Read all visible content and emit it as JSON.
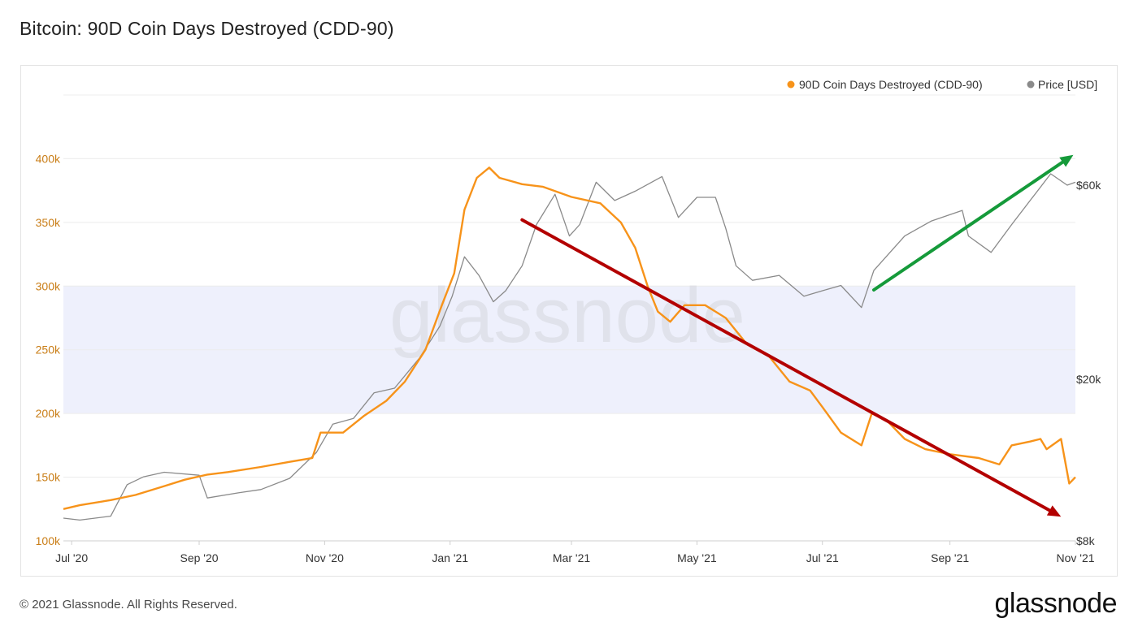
{
  "page": {
    "title": "Bitcoin: 90D Coin Days Destroyed (CDD-90)",
    "footer": "© 2021 Glassnode. All Rights Reserved.",
    "brand": "glassnode",
    "watermark": "glassnode"
  },
  "colors": {
    "cdd": "#f7931a",
    "price": "#8a8a8a",
    "band": "#eef0fc",
    "grid": "#ececec",
    "left_axis_text": "#c97d16",
    "right_axis_text": "#333333",
    "down_arrow": "#b30000",
    "up_arrow": "#159a3a"
  },
  "chart_data": {
    "type": "line",
    "title": "Bitcoin: 90D Coin Days Destroyed (CDD-90)",
    "legend_position": "top-right",
    "grid": true,
    "x_range": [
      "2020-06-27",
      "2021-11-01"
    ],
    "x_ticks": [
      {
        "date": "2020-07-01",
        "label": "Jul '20"
      },
      {
        "date": "2020-09-01",
        "label": "Sep '20"
      },
      {
        "date": "2020-11-01",
        "label": "Nov '20"
      },
      {
        "date": "2021-01-01",
        "label": "Jan '21"
      },
      {
        "date": "2021-03-01",
        "label": "Mar '21"
      },
      {
        "date": "2021-05-01",
        "label": "May '21"
      },
      {
        "date": "2021-07-01",
        "label": "Jul '21"
      },
      {
        "date": "2021-09-01",
        "label": "Sep '21"
      },
      {
        "date": "2021-11-01",
        "label": "Nov '21"
      }
    ],
    "left_axis": {
      "ylim": [
        100000,
        450000
      ],
      "ticks": [
        {
          "value": 100000,
          "label": "100k"
        },
        {
          "value": 150000,
          "label": "150k"
        },
        {
          "value": 200000,
          "label": "200k"
        },
        {
          "value": 250000,
          "label": "250k"
        },
        {
          "value": 300000,
          "label": "300k"
        },
        {
          "value": 350000,
          "label": "350k"
        },
        {
          "value": 400000,
          "label": "400k"
        }
      ]
    },
    "right_axis": {
      "scale": "log",
      "ylim": [
        8000,
        100000
      ],
      "ticks": [
        {
          "value": 8000,
          "label": "$8k"
        },
        {
          "value": 20000,
          "label": "$20k"
        },
        {
          "value": 60000,
          "label": "$60k"
        }
      ]
    },
    "band": {
      "axis": "left",
      "from": 200000,
      "to": 300000
    },
    "series": [
      {
        "name": "90D Coin Days Destroyed (CDD-90)",
        "axis": "left",
        "points": [
          [
            "2020-06-27",
            125000
          ],
          [
            "2020-07-05",
            128000
          ],
          [
            "2020-07-20",
            132000
          ],
          [
            "2020-08-01",
            136000
          ],
          [
            "2020-08-15",
            143000
          ],
          [
            "2020-08-25",
            148000
          ],
          [
            "2020-09-05",
            152000
          ],
          [
            "2020-09-15",
            154000
          ],
          [
            "2020-10-01",
            158000
          ],
          [
            "2020-10-15",
            162000
          ],
          [
            "2020-10-26",
            165000
          ],
          [
            "2020-10-30",
            185000
          ],
          [
            "2020-11-10",
            185000
          ],
          [
            "2020-11-20",
            198000
          ],
          [
            "2020-12-01",
            210000
          ],
          [
            "2020-12-10",
            225000
          ],
          [
            "2020-12-20",
            250000
          ],
          [
            "2020-12-28",
            285000
          ],
          [
            "2021-01-03",
            310000
          ],
          [
            "2021-01-08",
            360000
          ],
          [
            "2021-01-14",
            385000
          ],
          [
            "2021-01-20",
            393000
          ],
          [
            "2021-01-25",
            385000
          ],
          [
            "2021-02-05",
            380000
          ],
          [
            "2021-02-15",
            378000
          ],
          [
            "2021-03-01",
            370000
          ],
          [
            "2021-03-15",
            365000
          ],
          [
            "2021-03-25",
            350000
          ],
          [
            "2021-04-01",
            330000
          ],
          [
            "2021-04-07",
            300000
          ],
          [
            "2021-04-12",
            280000
          ],
          [
            "2021-04-18",
            272000
          ],
          [
            "2021-04-25",
            285000
          ],
          [
            "2021-05-05",
            285000
          ],
          [
            "2021-05-15",
            275000
          ],
          [
            "2021-05-25",
            255000
          ],
          [
            "2021-06-05",
            245000
          ],
          [
            "2021-06-15",
            225000
          ],
          [
            "2021-06-25",
            218000
          ],
          [
            "2021-07-01",
            205000
          ],
          [
            "2021-07-10",
            185000
          ],
          [
            "2021-07-20",
            175000
          ],
          [
            "2021-07-25",
            200000
          ],
          [
            "2021-08-01",
            195000
          ],
          [
            "2021-08-10",
            180000
          ],
          [
            "2021-08-20",
            172000
          ],
          [
            "2021-09-01",
            168000
          ],
          [
            "2021-09-15",
            165000
          ],
          [
            "2021-09-25",
            160000
          ],
          [
            "2021-10-01",
            175000
          ],
          [
            "2021-10-10",
            178000
          ],
          [
            "2021-10-15",
            180000
          ],
          [
            "2021-10-18",
            172000
          ],
          [
            "2021-10-25",
            180000
          ],
          [
            "2021-10-29",
            145000
          ],
          [
            "2021-11-01",
            150000
          ]
        ]
      },
      {
        "name": "Price [USD]",
        "axis": "right",
        "points": [
          [
            "2020-06-27",
            9100
          ],
          [
            "2020-07-05",
            9000
          ],
          [
            "2020-07-20",
            9200
          ],
          [
            "2020-07-28",
            11000
          ],
          [
            "2020-08-05",
            11500
          ],
          [
            "2020-08-15",
            11800
          ],
          [
            "2020-09-01",
            11600
          ],
          [
            "2020-09-05",
            10200
          ],
          [
            "2020-09-20",
            10500
          ],
          [
            "2020-10-01",
            10700
          ],
          [
            "2020-10-15",
            11400
          ],
          [
            "2020-10-28",
            13200
          ],
          [
            "2020-11-05",
            15500
          ],
          [
            "2020-11-15",
            16000
          ],
          [
            "2020-11-25",
            18500
          ],
          [
            "2020-12-05",
            19000
          ],
          [
            "2020-12-17",
            22500
          ],
          [
            "2020-12-27",
            27000
          ],
          [
            "2021-01-02",
            32000
          ],
          [
            "2021-01-08",
            40000
          ],
          [
            "2021-01-15",
            36000
          ],
          [
            "2021-01-22",
            31000
          ],
          [
            "2021-01-28",
            33000
          ],
          [
            "2021-02-05",
            38000
          ],
          [
            "2021-02-12",
            48000
          ],
          [
            "2021-02-21",
            57000
          ],
          [
            "2021-02-28",
            45000
          ],
          [
            "2021-03-05",
            48000
          ],
          [
            "2021-03-13",
            61000
          ],
          [
            "2021-03-22",
            55000
          ],
          [
            "2021-04-01",
            58000
          ],
          [
            "2021-04-14",
            63000
          ],
          [
            "2021-04-22",
            50000
          ],
          [
            "2021-05-01",
            56000
          ],
          [
            "2021-05-10",
            56000
          ],
          [
            "2021-05-15",
            47000
          ],
          [
            "2021-05-20",
            38000
          ],
          [
            "2021-05-28",
            35000
          ],
          [
            "2021-06-10",
            36000
          ],
          [
            "2021-06-22",
            32000
          ],
          [
            "2021-07-01",
            33000
          ],
          [
            "2021-07-10",
            34000
          ],
          [
            "2021-07-20",
            30000
          ],
          [
            "2021-07-26",
            37000
          ],
          [
            "2021-08-10",
            45000
          ],
          [
            "2021-08-23",
            49000
          ],
          [
            "2021-09-07",
            52000
          ],
          [
            "2021-09-10",
            45000
          ],
          [
            "2021-09-21",
            41000
          ],
          [
            "2021-10-01",
            48000
          ],
          [
            "2021-10-10",
            55000
          ],
          [
            "2021-10-20",
            64000
          ],
          [
            "2021-10-28",
            60000
          ],
          [
            "2021-11-01",
            61000
          ]
        ]
      }
    ],
    "annotations": [
      {
        "type": "arrow",
        "color": "down_arrow",
        "from": {
          "date": "2021-02-05",
          "axis": "left",
          "value": 352000
        },
        "to": {
          "date": "2021-10-25",
          "axis": "left",
          "value": 119000
        }
      },
      {
        "type": "arrow",
        "color": "up_arrow",
        "from": {
          "date": "2021-07-26",
          "axis": "left",
          "value": 297000
        },
        "to": {
          "date": "2021-10-31",
          "axis": "left",
          "value": 403000
        }
      }
    ]
  }
}
